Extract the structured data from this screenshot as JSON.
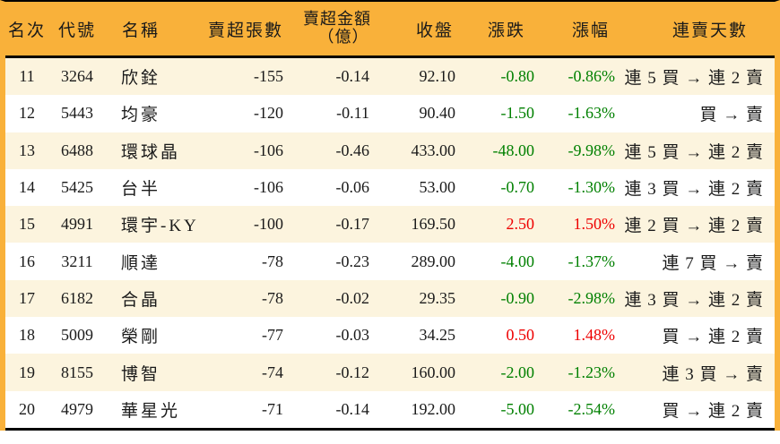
{
  "colors": {
    "accent": "#F9B13A",
    "row_alt_bg": "#FCF4DE",
    "row_bg": "#FFFFFF",
    "up_red": "#EE0000",
    "down_green": "#008000",
    "rule_black": "#000000"
  },
  "table": {
    "columns": [
      {
        "key": "rank",
        "label": "名次"
      },
      {
        "key": "code",
        "label": "代號"
      },
      {
        "key": "name",
        "label": "名稱"
      },
      {
        "key": "sell_volume",
        "label": "賣超張數"
      },
      {
        "key": "sell_amount",
        "label": "賣超金額",
        "label_line2": "（億）"
      },
      {
        "key": "close",
        "label": "收盤"
      },
      {
        "key": "change",
        "label": "漲跌"
      },
      {
        "key": "change_pct",
        "label": "漲幅"
      },
      {
        "key": "streak",
        "label": "連賣天數"
      }
    ],
    "rows": [
      {
        "rank": "11",
        "code": "3264",
        "name": "欣銓",
        "sell_volume": "-155",
        "sell_amount": "-0.14",
        "close": "92.10",
        "change": "-0.80",
        "change_pct": "-0.86%",
        "change_dir": "down",
        "streak": "連 5 買 → 連 2 賣"
      },
      {
        "rank": "12",
        "code": "5443",
        "name": "均豪",
        "sell_volume": "-120",
        "sell_amount": "-0.11",
        "close": "90.40",
        "change": "-1.50",
        "change_pct": "-1.63%",
        "change_dir": "down",
        "streak": "買 → 賣"
      },
      {
        "rank": "13",
        "code": "6488",
        "name": "環球晶",
        "sell_volume": "-106",
        "sell_amount": "-0.46",
        "close": "433.00",
        "change": "-48.00",
        "change_pct": "-9.98%",
        "change_dir": "down",
        "streak": "連 5 買 → 連 2 賣"
      },
      {
        "rank": "14",
        "code": "5425",
        "name": "台半",
        "sell_volume": "-106",
        "sell_amount": "-0.06",
        "close": "53.00",
        "change": "-0.70",
        "change_pct": "-1.30%",
        "change_dir": "down",
        "streak": "連 3 買 → 連 2 賣"
      },
      {
        "rank": "15",
        "code": "4991",
        "name": "環宇-KY",
        "sell_volume": "-100",
        "sell_amount": "-0.17",
        "close": "169.50",
        "change": "2.50",
        "change_pct": "1.50%",
        "change_dir": "up",
        "streak": "連 2 買 → 連 2 賣"
      },
      {
        "rank": "16",
        "code": "3211",
        "name": "順達",
        "sell_volume": "-78",
        "sell_amount": "-0.23",
        "close": "289.00",
        "change": "-4.00",
        "change_pct": "-1.37%",
        "change_dir": "down",
        "streak": "連 7 買 → 賣"
      },
      {
        "rank": "17",
        "code": "6182",
        "name": "合晶",
        "sell_volume": "-78",
        "sell_amount": "-0.02",
        "close": "29.35",
        "change": "-0.90",
        "change_pct": "-2.98%",
        "change_dir": "down",
        "streak": "連 3 買 → 連 2 賣"
      },
      {
        "rank": "18",
        "code": "5009",
        "name": "榮剛",
        "sell_volume": "-77",
        "sell_amount": "-0.03",
        "close": "34.25",
        "change": "0.50",
        "change_pct": "1.48%",
        "change_dir": "up",
        "streak": "買 → 連 2 賣"
      },
      {
        "rank": "19",
        "code": "8155",
        "name": "博智",
        "sell_volume": "-74",
        "sell_amount": "-0.12",
        "close": "160.00",
        "change": "-2.00",
        "change_pct": "-1.23%",
        "change_dir": "down",
        "streak": "連 3 買 → 賣"
      },
      {
        "rank": "20",
        "code": "4979",
        "name": "華星光",
        "sell_volume": "-71",
        "sell_amount": "-0.14",
        "close": "192.00",
        "change": "-5.00",
        "change_pct": "-2.54%",
        "change_dir": "down",
        "streak": "買 → 連 2 賣"
      }
    ]
  }
}
